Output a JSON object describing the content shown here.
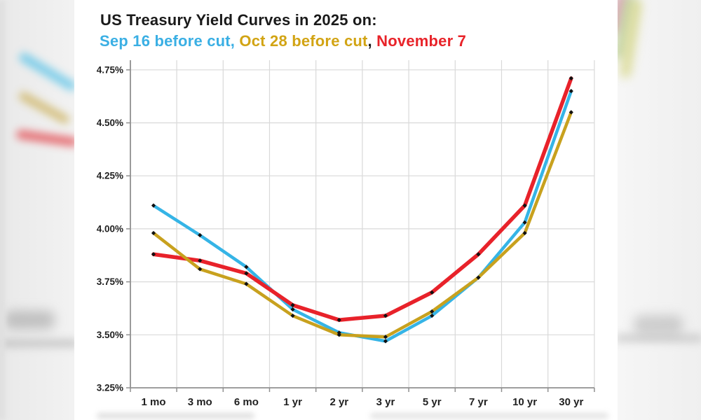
{
  "header": {
    "title": "US Treasury Yield Curves in 2025 on:"
  },
  "chart_data": {
    "type": "line",
    "title": "US Treasury Yield Curves in 2025 on:",
    "subtitle_segments": [
      {
        "text": "Sep 16 before cut,",
        "color": "#3AAFE4"
      },
      {
        "text": " Oct 28 before cut",
        "color": "#D2A414"
      },
      {
        "text": ",",
        "color": "#1A1A1A"
      },
      {
        "text": " November 7",
        "color": "#E82329"
      }
    ],
    "categories": [
      "1 mo",
      "3 mo",
      "6 mo",
      "1 yr",
      "2 yr",
      "3 yr",
      "5 yr",
      "7 yr",
      "10 yr",
      "30 yr"
    ],
    "y_tick_labels": [
      "4.75%",
      "4.50%",
      "4.25%",
      "4.00%",
      "3.75%",
      "3.50%",
      "3.25%"
    ],
    "ylim": [
      3.25,
      4.75
    ],
    "grid": true,
    "legend_position": "in-subtitle-text",
    "xlabel": "",
    "ylabel": "",
    "series": [
      {
        "name": "Sep 16 before cut",
        "color": "#35B4E6",
        "values": [
          4.11,
          3.97,
          3.82,
          3.62,
          3.51,
          3.47,
          3.59,
          3.77,
          4.03,
          4.65
        ]
      },
      {
        "name": "Oct 28 before cut",
        "color": "#C8A11E",
        "values": [
          3.98,
          3.81,
          3.74,
          3.59,
          3.5,
          3.49,
          3.61,
          3.77,
          3.98,
          4.55
        ]
      },
      {
        "name": "November 7",
        "color": "#E8222A",
        "values": [
          3.88,
          3.85,
          3.79,
          3.64,
          3.57,
          3.59,
          3.7,
          3.88,
          4.11,
          4.71
        ]
      }
    ],
    "marker_color": "#111111",
    "colors": {
      "gridline": "#d9d9d9",
      "axis": "#909090",
      "tick_label": "#212121"
    }
  }
}
